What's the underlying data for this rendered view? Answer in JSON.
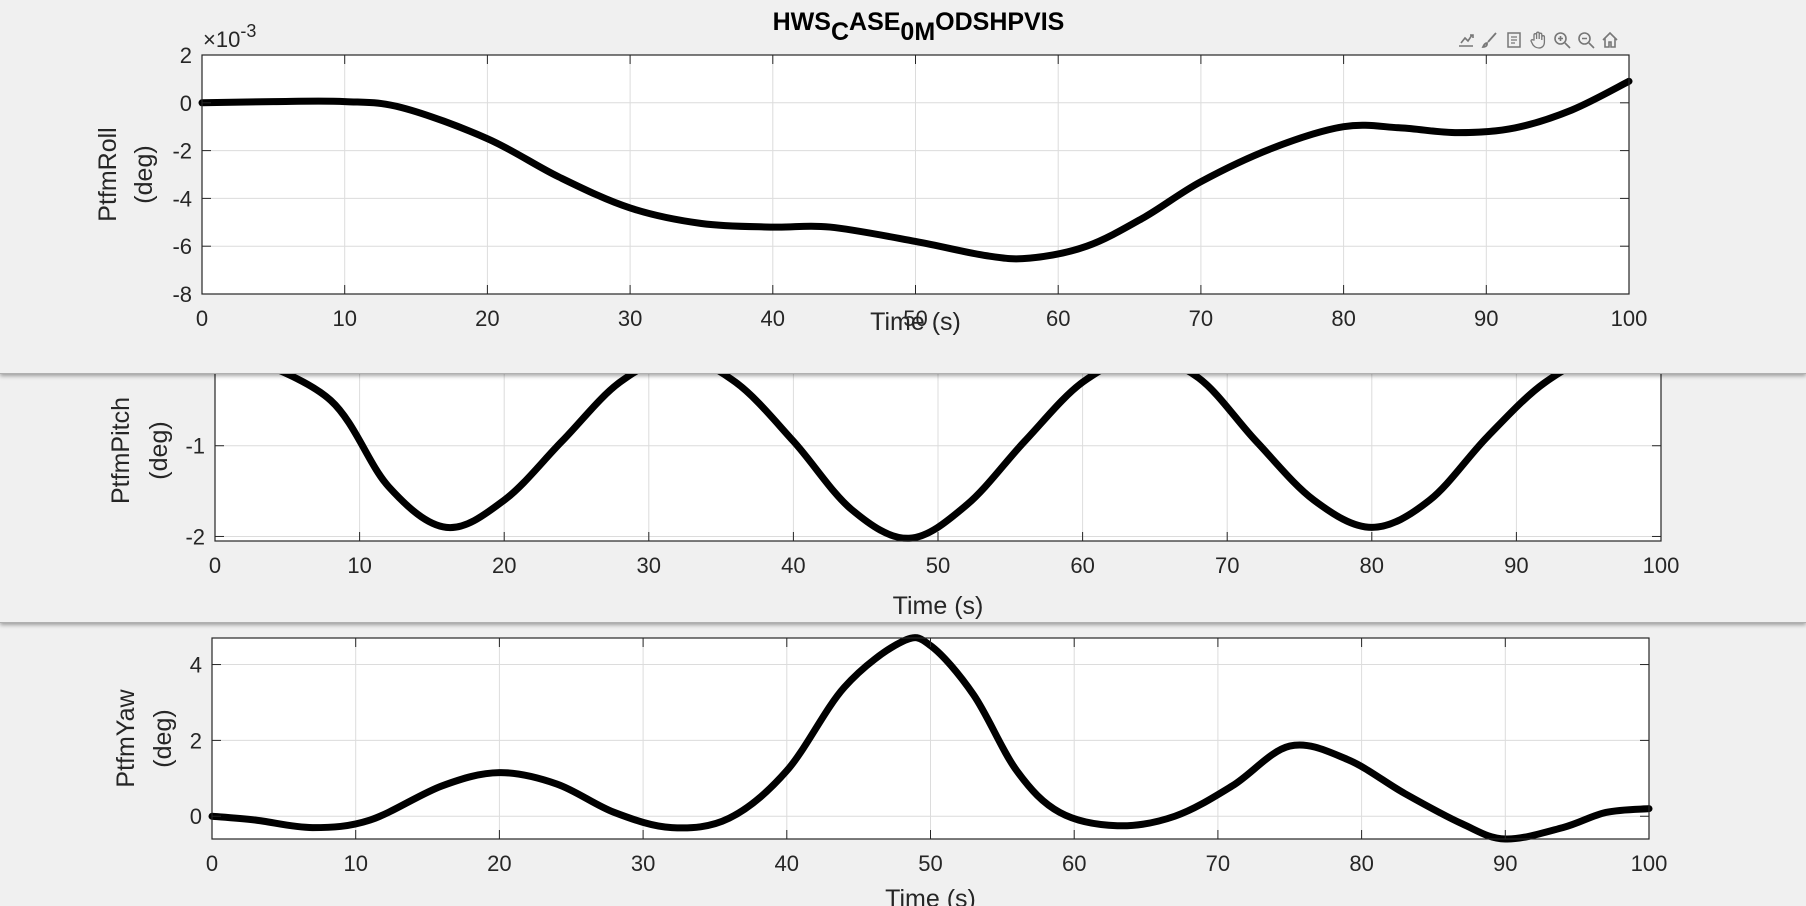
{
  "figure_title": {
    "base": "HWS",
    "parts": [
      [
        "C",
        "sub"
      ],
      [
        "ASE",
        ""
      ],
      [
        "0M",
        "sub"
      ],
      [
        "ODSHPVIS",
        ""
      ]
    ]
  },
  "toolbar": [
    "export-icon",
    "brush-icon",
    "datatip-icon",
    "pan-icon",
    "zoom-in-icon",
    "zoom-out-icon",
    "home-icon"
  ],
  "colors": {
    "line": "#000000",
    "grid": "#dcdcdc",
    "axes_bg": "#ffffff",
    "figure_bg": "#f0f0f0",
    "axis": "#262626"
  },
  "chart_data": [
    {
      "type": "line",
      "title": "HWS_CASE_0M_ODSHPVIS",
      "xlabel": "Time (s)",
      "ylabel": [
        "PtfmRoll",
        "(deg)"
      ],
      "exponent": "-3",
      "xlim": [
        0,
        100
      ],
      "ylim": [
        -8,
        2
      ],
      "xticks": [
        0,
        10,
        20,
        30,
        40,
        50,
        60,
        70,
        80,
        90,
        100
      ],
      "yticks": [
        -8,
        -6,
        -4,
        -2,
        0,
        2
      ],
      "grid": true,
      "series": [
        {
          "x": [
            0,
            5,
            10,
            14,
            20,
            25,
            30,
            35,
            40,
            44,
            50,
            55,
            58,
            62,
            66,
            70,
            75,
            80,
            84,
            88,
            92,
            96,
            100
          ],
          "y": [
            0,
            0.05,
            0.05,
            -0.2,
            -1.5,
            -3.1,
            -4.4,
            -5.05,
            -5.2,
            -5.2,
            -5.8,
            -6.4,
            -6.5,
            -6.0,
            -4.8,
            -3.3,
            -1.9,
            -1.0,
            -1.05,
            -1.25,
            -1.05,
            -0.3,
            0.9
          ]
        }
      ]
    },
    {
      "type": "line",
      "xlabel": "Time (s)",
      "ylabel": [
        "PtfmPitch",
        "(deg)"
      ],
      "xlim": [
        0,
        100
      ],
      "ylim": [
        -2.05,
        0.0
      ],
      "xticks": [
        0,
        10,
        20,
        30,
        40,
        50,
        60,
        70,
        80,
        90,
        100
      ],
      "yticks": [
        -2,
        -1
      ],
      "grid": true,
      "series": [
        {
          "x": [
            2,
            8,
            12,
            16,
            20,
            24,
            28,
            32,
            36,
            40,
            44,
            48,
            52,
            56,
            60,
            64,
            68,
            72,
            76,
            80,
            84,
            88,
            92,
            96,
            100
          ],
          "y": [
            0,
            -0.5,
            -1.45,
            -1.9,
            -1.6,
            -0.95,
            -0.3,
            -0.02,
            -0.3,
            -0.95,
            -1.7,
            -2.02,
            -1.65,
            -0.95,
            -0.3,
            -0.02,
            -0.25,
            -0.95,
            -1.6,
            -1.9,
            -1.6,
            -0.9,
            -0.3,
            0,
            -0.15
          ]
        }
      ]
    },
    {
      "type": "line",
      "title": "",
      "xlabel": "Time (s)",
      "ylabel": [
        "PtfmYaw",
        "(deg)"
      ],
      "exponent": "",
      "xlim": [
        0,
        100
      ],
      "ylim": [
        -0.6,
        4.7
      ],
      "xticks": [
        0,
        10,
        20,
        30,
        40,
        50,
        60,
        70,
        80,
        90,
        100
      ],
      "yticks": [
        0,
        2,
        4
      ],
      "grid": true,
      "series": [
        {
          "x": [
            0,
            3,
            7,
            11,
            16,
            20,
            24,
            28,
            32,
            36,
            40,
            44,
            48,
            50,
            53,
            56,
            59,
            63,
            67,
            71,
            75,
            79,
            83,
            87,
            90,
            94,
            97,
            100
          ],
          "y": [
            0,
            -0.1,
            -0.3,
            -0.1,
            0.8,
            1.15,
            0.85,
            0.1,
            -0.3,
            -0.05,
            1.2,
            3.4,
            4.6,
            4.5,
            3.2,
            1.2,
            0.1,
            -0.25,
            0.0,
            0.8,
            1.85,
            1.5,
            0.6,
            -0.2,
            -0.6,
            -0.3,
            0.1,
            0.2
          ]
        }
      ]
    }
  ]
}
